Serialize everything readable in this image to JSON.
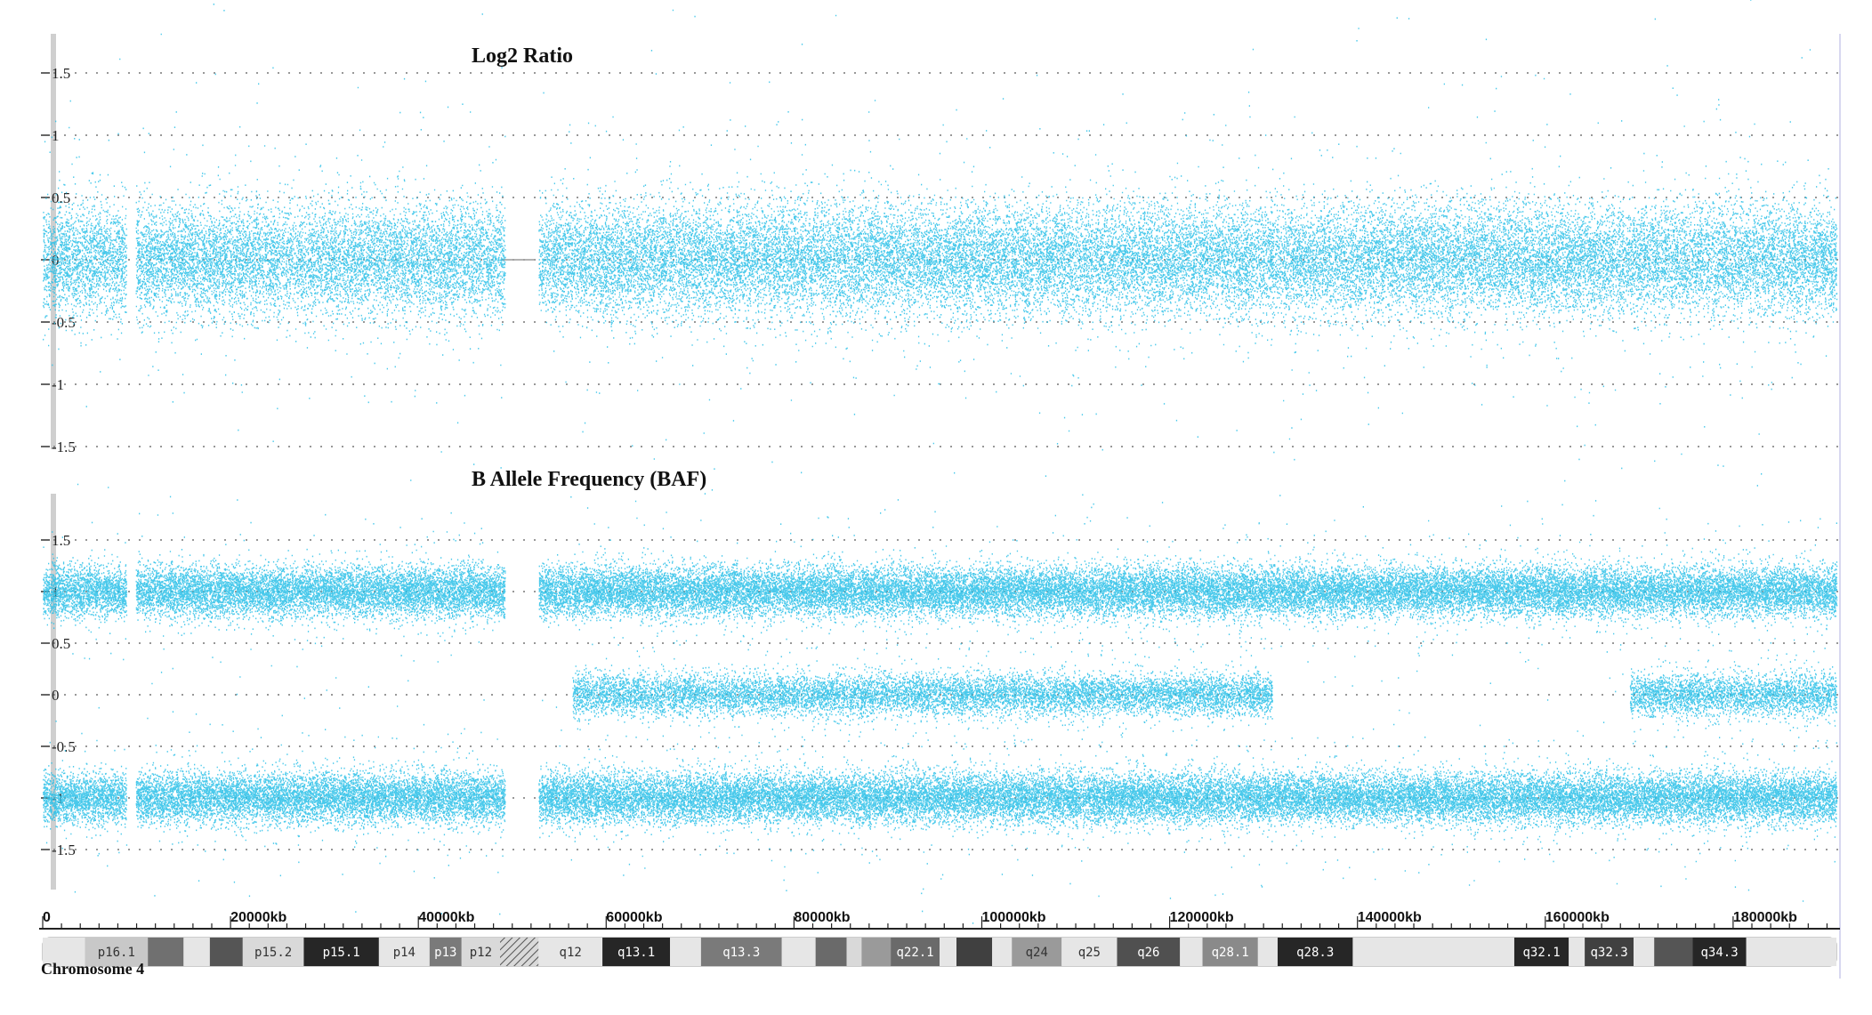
{
  "chart_data": [
    {
      "type": "scatter",
      "title": "Log2 Ratio",
      "y_tick_labels": [
        "1.5",
        "1",
        "0.5",
        "0",
        "-0.5",
        "-1",
        "-1.5"
      ],
      "ylim": [
        -1.5,
        1.5
      ],
      "xlim": [
        0,
        191000
      ],
      "x_unit": "kb",
      "grid": true,
      "point_color": "#29c0e8",
      "series": [
        {
          "band_center": 0.0,
          "spread": 0.22,
          "segments": [
            [
              0,
              8900
            ],
            [
              9900,
              49200
            ],
            [
              52800,
              191000
            ]
          ]
        }
      ]
    },
    {
      "type": "scatter",
      "title": "B Allele Frequency (BAF)",
      "y_tick_labels": [
        "1.5",
        "1",
        "0.5",
        "0",
        "-0.5",
        "-1",
        "-1.5"
      ],
      "xlim": [
        0,
        191000
      ],
      "x_unit": "kb",
      "grid": true,
      "point_color": "#29c0e8",
      "series": [
        {
          "band_center": 1.0,
          "spread": 0.12,
          "segments": [
            [
              0,
              8900
            ],
            [
              9900,
              49200
            ],
            [
              52800,
              191000
            ]
          ]
        },
        {
          "band_center": 0.0,
          "spread": 0.1,
          "segments": [
            [
              56400,
              130900
            ],
            [
              169000,
              191000
            ]
          ]
        },
        {
          "band_center": -1.0,
          "spread": 0.12,
          "segments": [
            [
              0,
              8900
            ],
            [
              9900,
              49200
            ],
            [
              52800,
              191000
            ]
          ]
        }
      ]
    }
  ],
  "x_axis": {
    "tick_labels": [
      "0",
      "20000kb",
      "40000kb",
      "60000kb",
      "80000kb",
      "100000kb",
      "120000kb",
      "140000kb",
      "160000kb",
      "180000kb"
    ],
    "tick_values": [
      0,
      20000,
      40000,
      60000,
      80000,
      100000,
      120000,
      140000,
      160000,
      180000
    ]
  },
  "ideogram": {
    "chromosome_label": "Chromosome 4",
    "bands": [
      {
        "name": "",
        "start": 0,
        "end": 4500,
        "shade": "#e6e6e6"
      },
      {
        "name": "p16.1",
        "start": 4500,
        "end": 11200,
        "shade": "#c8c8c8"
      },
      {
        "name": "",
        "start": 11200,
        "end": 15000,
        "shade": "#707070"
      },
      {
        "name": "",
        "start": 15000,
        "end": 17800,
        "shade": "#e6e6e6"
      },
      {
        "name": "",
        "start": 17800,
        "end": 21300,
        "shade": "#555555"
      },
      {
        "name": "p15.2",
        "start": 21300,
        "end": 27800,
        "shade": "#d9d9d9"
      },
      {
        "name": "p15.1",
        "start": 27800,
        "end": 35800,
        "shade": "#262626"
      },
      {
        "name": "p14",
        "start": 35800,
        "end": 41200,
        "shade": "#e6e6e6"
      },
      {
        "name": "p13",
        "start": 41200,
        "end": 44600,
        "shade": "#7a7a7a"
      },
      {
        "name": "p12",
        "start": 44600,
        "end": 48700,
        "shade": "#d9d9d9"
      },
      {
        "name": "",
        "start": 48700,
        "end": 52800,
        "shade": "hatch"
      },
      {
        "name": "q12",
        "start": 52800,
        "end": 59600,
        "shade": "#e6e6e6"
      },
      {
        "name": "q13.1",
        "start": 59600,
        "end": 66800,
        "shade": "#262626"
      },
      {
        "name": "",
        "start": 66800,
        "end": 70100,
        "shade": "#e6e6e6"
      },
      {
        "name": "q13.3",
        "start": 70100,
        "end": 78700,
        "shade": "#7a7a7a"
      },
      {
        "name": "",
        "start": 78700,
        "end": 82300,
        "shade": "#e6e6e6"
      },
      {
        "name": "",
        "start": 82300,
        "end": 85600,
        "shade": "#6a6a6a"
      },
      {
        "name": "",
        "start": 85600,
        "end": 87200,
        "shade": "#d9d9d9"
      },
      {
        "name": "",
        "start": 87200,
        "end": 90300,
        "shade": "#9a9a9a"
      },
      {
        "name": "q22.1",
        "start": 90300,
        "end": 95500,
        "shade": "#6a6a6a"
      },
      {
        "name": "",
        "start": 95500,
        "end": 97300,
        "shade": "#e6e6e6"
      },
      {
        "name": "",
        "start": 97300,
        "end": 101100,
        "shade": "#404040"
      },
      {
        "name": "",
        "start": 101100,
        "end": 103200,
        "shade": "#e6e6e6"
      },
      {
        "name": "q24",
        "start": 103200,
        "end": 108500,
        "shade": "#9a9a9a"
      },
      {
        "name": "q25",
        "start": 108500,
        "end": 114400,
        "shade": "#e6e6e6"
      },
      {
        "name": "q26",
        "start": 114400,
        "end": 121100,
        "shade": "#505050"
      },
      {
        "name": "",
        "start": 121100,
        "end": 123500,
        "shade": "#e6e6e6"
      },
      {
        "name": "q28.1",
        "start": 123500,
        "end": 129400,
        "shade": "#8a8a8a"
      },
      {
        "name": "",
        "start": 129400,
        "end": 131500,
        "shade": "#e6e6e6"
      },
      {
        "name": "q28.3",
        "start": 131500,
        "end": 139500,
        "shade": "#262626"
      },
      {
        "name": "",
        "start": 139500,
        "end": 156700,
        "shade": "#e6e6e6"
      },
      {
        "name": "q32.1",
        "start": 156700,
        "end": 162500,
        "shade": "#262626"
      },
      {
        "name": "",
        "start": 162500,
        "end": 164200,
        "shade": "#e6e6e6"
      },
      {
        "name": "q32.3",
        "start": 164200,
        "end": 169400,
        "shade": "#404040"
      },
      {
        "name": "",
        "start": 169400,
        "end": 171600,
        "shade": "#e6e6e6"
      },
      {
        "name": "",
        "start": 171600,
        "end": 175700,
        "shade": "#555555"
      },
      {
        "name": "q34.3",
        "start": 175700,
        "end": 181400,
        "shade": "#262626"
      },
      {
        "name": "",
        "start": 181400,
        "end": 191000,
        "shade": "#e6e6e6"
      }
    ]
  }
}
